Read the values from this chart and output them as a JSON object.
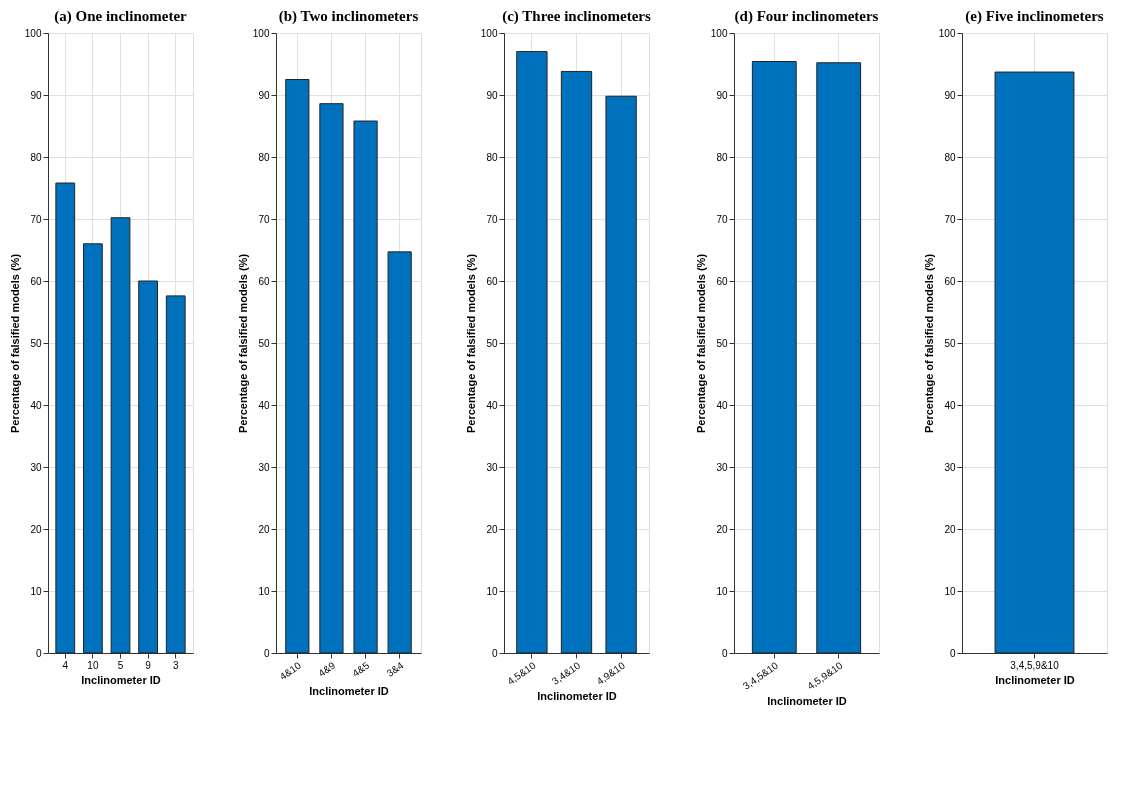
{
  "chart_data": [
    {
      "type": "bar",
      "title": "(a) One inclinometer",
      "xlabel": "Inclinometer ID",
      "ylabel": "Percentage of falsified models (%)",
      "categories": [
        "4",
        "10",
        "5",
        "9",
        "3"
      ],
      "values": [
        75.8,
        66.0,
        70.2,
        60.0,
        57.6
      ],
      "color": "#0072bd",
      "ylim": [
        0,
        100
      ],
      "yticks": [
        0,
        10,
        20,
        30,
        40,
        50,
        60,
        70,
        80,
        90,
        100
      ],
      "grid": true
    },
    {
      "type": "bar",
      "title": "(b) Two inclinometers",
      "xlabel": "Inclinometer ID",
      "ylabel": "Percentage of falsified models (%)",
      "categories": [
        "4&10",
        "4&9",
        "4&5",
        "3&4"
      ],
      "values": [
        92.5,
        88.6,
        85.8,
        64.7
      ],
      "color": "#0072bd",
      "ylim": [
        0,
        100
      ],
      "yticks": [
        0,
        10,
        20,
        30,
        40,
        50,
        60,
        70,
        80,
        90,
        100
      ],
      "grid": true
    },
    {
      "type": "bar",
      "title": "(c) Three inclinometers",
      "xlabel": "Inclinometer ID",
      "ylabel": "Percentage of falsified models (%)",
      "categories": [
        "4,5&10",
        "3,4&10",
        "4,9&10"
      ],
      "values": [
        97.0,
        93.8,
        89.8
      ],
      "color": "#0072bd",
      "ylim": [
        0,
        100
      ],
      "yticks": [
        0,
        10,
        20,
        30,
        40,
        50,
        60,
        70,
        80,
        90,
        100
      ],
      "grid": true
    },
    {
      "type": "bar",
      "title": "(d) Four inclinometers",
      "xlabel": "Inclinometer ID",
      "ylabel": "Percentage of falsified models (%)",
      "categories": [
        "3,4,5&10",
        "4,5,9&10"
      ],
      "values": [
        95.4,
        95.2
      ],
      "color": "#0072bd",
      "ylim": [
        0,
        100
      ],
      "yticks": [
        0,
        10,
        20,
        30,
        40,
        50,
        60,
        70,
        80,
        90,
        100
      ],
      "grid": true
    },
    {
      "type": "bar",
      "title": "(e) Five inclinometers",
      "xlabel": "Inclinometer ID",
      "ylabel": "Percentage of falsified models (%)",
      "categories": [
        "3,4,5,9&10"
      ],
      "values": [
        93.7
      ],
      "color": "#0072bd",
      "ylim": [
        0,
        100
      ],
      "yticks": [
        0,
        10,
        20,
        30,
        40,
        50,
        60,
        70,
        80,
        90,
        100
      ],
      "grid": true
    }
  ]
}
